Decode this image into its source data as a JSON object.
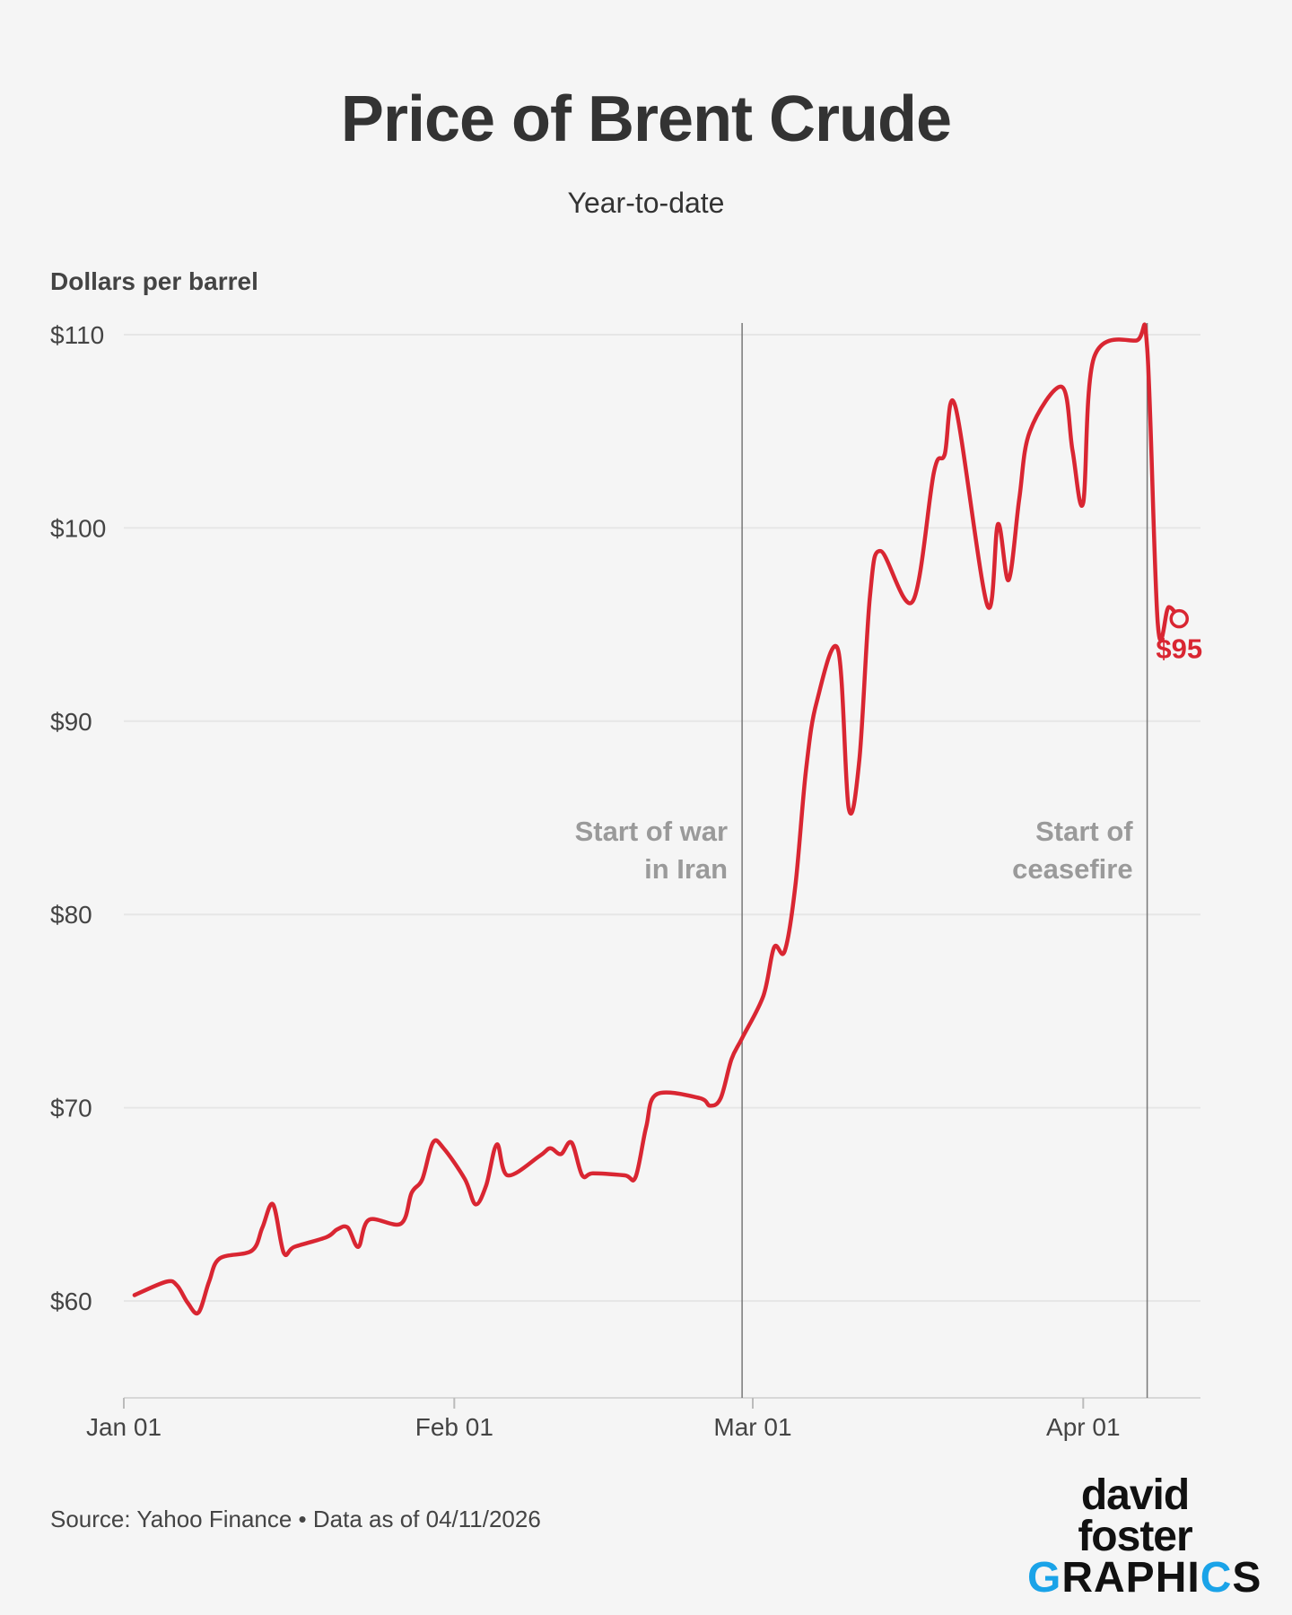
{
  "chart_data": {
    "type": "line",
    "title": "Price of Brent Crude",
    "subtitle": "Year-to-date",
    "ylabel": "Dollars per barrel",
    "ylim": [
      55,
      110
    ],
    "y_ticks": [
      {
        "value": 60,
        "label": "$60"
      },
      {
        "value": 70,
        "label": "$70"
      },
      {
        "value": 80,
        "label": "$80"
      },
      {
        "value": 90,
        "label": "$90"
      },
      {
        "value": 100,
        "label": "$100"
      },
      {
        "value": 110,
        "label": "$110"
      }
    ],
    "x_ticks": [
      {
        "date": "2026-01-01",
        "label": "Jan 01"
      },
      {
        "date": "2026-02-01",
        "label": "Feb 01"
      },
      {
        "date": "2026-03-01",
        "label": "Mar 01"
      },
      {
        "date": "2026-04-01",
        "label": "Apr 01"
      }
    ],
    "xlim": [
      "2026-01-01",
      "2026-04-12"
    ],
    "grid": true,
    "line_color": "#d92632",
    "series": [
      {
        "points": [
          [
            "2026-01-02",
            60.3
          ],
          [
            "2026-01-05",
            61.0
          ],
          [
            "2026-01-06",
            60.8
          ],
          [
            "2026-01-07",
            59.9
          ],
          [
            "2026-01-08",
            59.4
          ],
          [
            "2026-01-09",
            61.0
          ],
          [
            "2026-01-10",
            62.2
          ],
          [
            "2026-01-13",
            62.6
          ],
          [
            "2026-01-14",
            63.8
          ],
          [
            "2026-01-15",
            65.0
          ],
          [
            "2026-01-16",
            62.5
          ],
          [
            "2026-01-17",
            62.8
          ],
          [
            "2026-01-20",
            63.3
          ],
          [
            "2026-01-21",
            63.7
          ],
          [
            "2026-01-22",
            63.8
          ],
          [
            "2026-01-23",
            62.8
          ],
          [
            "2026-01-24",
            64.2
          ],
          [
            "2026-01-27",
            64.0
          ],
          [
            "2026-01-28",
            65.6
          ],
          [
            "2026-01-29",
            66.3
          ],
          [
            "2026-01-30",
            68.2
          ],
          [
            "2026-01-31",
            67.9
          ],
          [
            "2026-02-02",
            66.3
          ],
          [
            "2026-02-03",
            65.0
          ],
          [
            "2026-02-04",
            66.0
          ],
          [
            "2026-02-05",
            68.1
          ],
          [
            "2026-02-06",
            66.5
          ],
          [
            "2026-02-09",
            67.5
          ],
          [
            "2026-02-10",
            67.9
          ],
          [
            "2026-02-11",
            67.6
          ],
          [
            "2026-02-12",
            68.2
          ],
          [
            "2026-02-13",
            66.5
          ],
          [
            "2026-02-14",
            66.6
          ],
          [
            "2026-02-17",
            66.5
          ],
          [
            "2026-02-18",
            66.4
          ],
          [
            "2026-02-19",
            69.0
          ],
          [
            "2026-02-20",
            70.7
          ],
          [
            "2026-02-24",
            70.5
          ],
          [
            "2026-02-25",
            70.1
          ],
          [
            "2026-02-26",
            70.5
          ],
          [
            "2026-02-27",
            72.5
          ],
          [
            "2026-02-28",
            73.6
          ],
          [
            "2026-03-02",
            75.8
          ],
          [
            "2026-03-03",
            78.3
          ],
          [
            "2026-03-04",
            78.1
          ],
          [
            "2026-03-05",
            81.5
          ],
          [
            "2026-03-06",
            87.5
          ],
          [
            "2026-03-07",
            91.0
          ],
          [
            "2026-03-09",
            93.7
          ],
          [
            "2026-03-10",
            85.5
          ],
          [
            "2026-03-11",
            88.0
          ],
          [
            "2026-03-12",
            96.5
          ],
          [
            "2026-03-13",
            98.8
          ],
          [
            "2026-03-16",
            96.2
          ],
          [
            "2026-03-18",
            102.9
          ],
          [
            "2026-03-19",
            103.8
          ],
          [
            "2026-03-20",
            106.3
          ],
          [
            "2026-03-23",
            96.0
          ],
          [
            "2026-03-24",
            100.2
          ],
          [
            "2026-03-25",
            97.3
          ],
          [
            "2026-03-26",
            101.5
          ],
          [
            "2026-03-27",
            105.0
          ],
          [
            "2026-03-30",
            107.3
          ],
          [
            "2026-03-31",
            104.0
          ],
          [
            "2026-04-01",
            101.3
          ],
          [
            "2026-04-02",
            108.8
          ],
          [
            "2026-04-06",
            109.7
          ],
          [
            "2026-04-07",
            109.3
          ],
          [
            "2026-04-08",
            95.0
          ],
          [
            "2026-04-09",
            95.9
          ],
          [
            "2026-04-10",
            95.3
          ]
        ]
      }
    ],
    "annotations": [
      {
        "date": "2026-02-28",
        "lines": [
          "Start of war",
          "in Iran"
        ]
      },
      {
        "date": "2026-04-07",
        "lines": [
          "Start of",
          "ceasefire"
        ]
      }
    ],
    "end_label": {
      "date": "2026-04-10",
      "value": 95.3,
      "text": "$95"
    }
  },
  "footer": {
    "source": "Source: Yahoo Finance • Data as of 04/11/2026"
  },
  "logo": {
    "line1": "david foster",
    "line2_prefix": "",
    "line2_o": "G",
    "line2_mid": "RAPHI",
    "line2_c": "C",
    "line2_s": "S"
  }
}
